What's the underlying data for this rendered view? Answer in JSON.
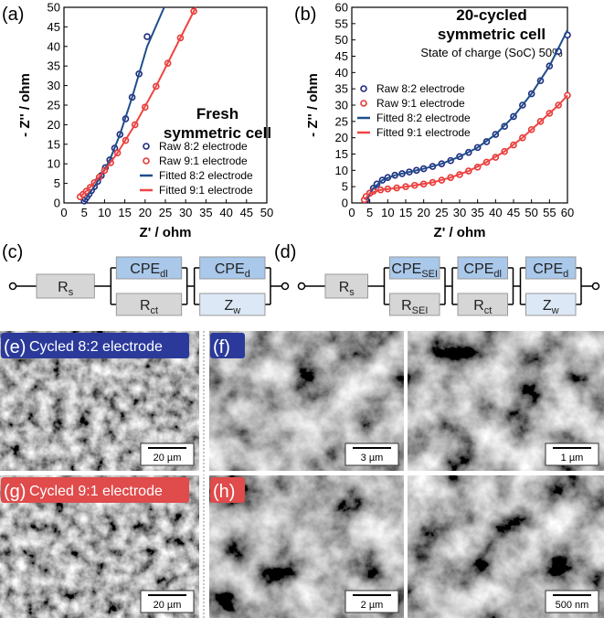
{
  "chart_data": [
    {
      "type": "scatter",
      "panel_label": "(a)",
      "annotation": [
        "Fresh",
        "symmetric cell"
      ],
      "xlabel": "Z' / ohm",
      "ylabel": "- Z'' / ohm",
      "xlim": [
        0,
        50
      ],
      "ylim": [
        0,
        50
      ],
      "xticks": [
        0,
        5,
        10,
        15,
        20,
        25,
        30,
        35,
        40,
        45,
        50
      ],
      "yticks": [
        0,
        5,
        10,
        15,
        20,
        25,
        30,
        35,
        40,
        45,
        50
      ],
      "legend": "lower right",
      "series": [
        {
          "name": "Raw 8:2 electrode",
          "color": "#1f2a80",
          "style": "markers",
          "x": [
            5.0,
            5.3,
            5.7,
            6.2,
            6.8,
            7.5,
            8.3,
            9.2,
            10.2,
            11.3,
            12.5,
            13.8,
            15.2,
            16.8,
            18.5,
            20.5
          ],
          "values": [
            0.5,
            1.0,
            1.6,
            2.3,
            3.2,
            4.2,
            5.5,
            7.0,
            9.0,
            11.0,
            14.0,
            17.5,
            21.5,
            27.0,
            33.0,
            42.5
          ]
        },
        {
          "name": "Raw 9:1 electrode",
          "color": "#e53935",
          "style": "markers",
          "x": [
            4.0,
            4.7,
            5.5,
            6.5,
            7.5,
            8.7,
            10.0,
            11.5,
            13.2,
            15.2,
            17.5,
            20.0,
            22.7,
            25.6,
            28.7,
            32.0
          ],
          "values": [
            1.6,
            2.2,
            3.0,
            4.0,
            5.2,
            6.6,
            8.3,
            10.3,
            12.8,
            16.0,
            20.0,
            24.5,
            29.8,
            35.7,
            42.2,
            49.0
          ]
        },
        {
          "name": "Fitted 8:2 electrode",
          "color": "#1f4e8c",
          "style": "line",
          "x": [
            5.0,
            6.2,
            7.5,
            9.2,
            11.3,
            13.8,
            16.8,
            20.5,
            24.7
          ],
          "values": [
            0.5,
            2.3,
            4.2,
            7.0,
            11.0,
            17.5,
            27.0,
            40.0,
            50.0
          ]
        },
        {
          "name": "Fitted 9:1 electrode",
          "color": "#ef4444",
          "style": "line",
          "x": [
            4.0,
            5.5,
            7.5,
            10.0,
            13.2,
            17.5,
            22.7,
            28.7,
            32.5
          ],
          "values": [
            1.6,
            3.0,
            5.2,
            8.3,
            12.8,
            20.0,
            29.8,
            42.2,
            50.0
          ]
        }
      ]
    },
    {
      "type": "scatter",
      "panel_label": "(b)",
      "annotation": [
        "20-cycled",
        "symmetric cell",
        "State of charge (SoC) 50%"
      ],
      "xlabel": "Z' / ohm",
      "ylabel": "- Z'' / ohm",
      "xlim": [
        0,
        60
      ],
      "ylim": [
        0,
        60
      ],
      "xticks": [
        0,
        5,
        10,
        15,
        20,
        25,
        30,
        35,
        40,
        45,
        50,
        55,
        60
      ],
      "yticks": [
        0,
        5,
        10,
        15,
        20,
        25,
        30,
        35,
        40,
        45,
        50,
        55,
        60
      ],
      "legend": "upper left",
      "series": [
        {
          "name": "Raw 8:2 electrode",
          "color": "#1f2a80",
          "style": "markers",
          "x": [
            4,
            5,
            6,
            7,
            8.5,
            10,
            12,
            14,
            16,
            18,
            20,
            22.5,
            25,
            27.5,
            30,
            32.5,
            35,
            37.5,
            40,
            42.5,
            45,
            47.5,
            50,
            52.5,
            55,
            57.5,
            60
          ],
          "values": [
            1,
            3,
            4.5,
            5.8,
            7,
            7.8,
            8.5,
            9,
            9.5,
            10,
            10.5,
            11.2,
            12,
            13,
            14.2,
            15.5,
            17,
            18.8,
            21,
            23.5,
            26.5,
            30,
            33.5,
            37.5,
            42,
            46.5,
            51.5
          ]
        },
        {
          "name": "Raw 9:1 electrode",
          "color": "#e53935",
          "style": "markers",
          "x": [
            3.5,
            4,
            5,
            6,
            8,
            10,
            12.5,
            15,
            17.5,
            20,
            22.5,
            25,
            27.5,
            30,
            32.5,
            35,
            37.5,
            40,
            42.5,
            45,
            47.5,
            50,
            52.5,
            55,
            57.5,
            60
          ],
          "values": [
            1,
            2,
            3,
            3.6,
            4,
            4.3,
            4.6,
            5,
            5.4,
            5.8,
            6.3,
            7,
            7.8,
            8.7,
            9.8,
            11,
            12.5,
            14,
            15.8,
            17.8,
            20,
            22.5,
            25,
            27.5,
            30,
            33
          ]
        },
        {
          "name": "Fitted 8:2 electrode",
          "color": "#1f4e8c",
          "style": "line",
          "x": [
            4,
            6,
            8.5,
            12,
            16,
            20,
            25,
            30,
            35,
            40,
            45,
            50,
            55,
            60
          ],
          "values": [
            1,
            4.5,
            7,
            8.5,
            9.5,
            10.5,
            12,
            14.2,
            17,
            21,
            26.5,
            33.5,
            42,
            53
          ]
        },
        {
          "name": "Fitted 9:1 electrode",
          "color": "#ef4444",
          "style": "line",
          "x": [
            3.5,
            5,
            8,
            12.5,
            17.5,
            22.5,
            27.5,
            32.5,
            37.5,
            42.5,
            47.5,
            52.5,
            57.5,
            60
          ],
          "values": [
            1,
            3,
            4,
            4.6,
            5.4,
            6.3,
            7.8,
            9.8,
            12.5,
            15.8,
            20,
            25,
            30,
            33
          ]
        }
      ]
    }
  ],
  "circuits": [
    {
      "panel_label": "(c)",
      "blocks": [
        [
          {
            "main": "R",
            "sub": "s"
          }
        ],
        [
          {
            "main": "CPE",
            "sub": "dl"
          },
          {
            "main": "R",
            "sub": "ct"
          }
        ],
        [
          {
            "main": "CPE",
            "sub": "d"
          },
          {
            "main": "Z",
            "sub": "w"
          }
        ]
      ]
    },
    {
      "panel_label": "(d)",
      "blocks": [
        [
          {
            "main": "R",
            "sub": "s"
          }
        ],
        [
          {
            "main": "CPE",
            "sub": "SEI"
          },
          {
            "main": "R",
            "sub": "SEI"
          }
        ],
        [
          {
            "main": "CPE",
            "sub": "dl"
          },
          {
            "main": "R",
            "sub": "ct"
          }
        ],
        [
          {
            "main": "CPE",
            "sub": "d"
          },
          {
            "main": "Z",
            "sub": "w"
          }
        ]
      ]
    }
  ],
  "images": [
    {
      "panel_label": "(e)",
      "caption": "Cycled 8:2 electrode",
      "scale_bars": [
        "20 µm"
      ]
    },
    {
      "panel_label": "(f)",
      "scale_bars": [
        "3 µm",
        "1 µm"
      ]
    },
    {
      "panel_label": "(g)",
      "caption": "Cycled 9:1 electrode",
      "scale_bars": [
        "20 µm"
      ]
    },
    {
      "panel_label": "(h)",
      "scale_bars": [
        "2 µm",
        "500 nm"
      ]
    }
  ]
}
